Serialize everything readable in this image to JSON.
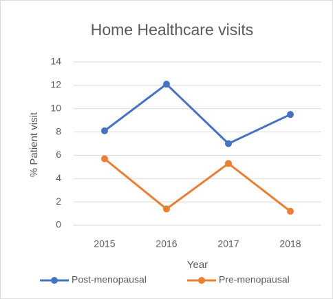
{
  "chart_data": {
    "type": "line",
    "title": "Home Healthcare visits",
    "x_label": "Year",
    "y_label": "% Patient visit",
    "categories": [
      "2015",
      "2016",
      "2017",
      "2018"
    ],
    "series": [
      {
        "name": "Post-menopausal",
        "color": "#4472c4",
        "values": [
          8.1,
          12.1,
          7.0,
          9.5
        ]
      },
      {
        "name": "Pre-menopausal",
        "color": "#ed7d31",
        "values": [
          5.7,
          1.4,
          5.3,
          1.2
        ]
      }
    ],
    "ylim": [
      0,
      14
    ],
    "yticks": [
      0,
      2,
      4,
      6,
      8,
      10,
      12,
      14
    ],
    "grid": true,
    "legend": "bottom"
  }
}
